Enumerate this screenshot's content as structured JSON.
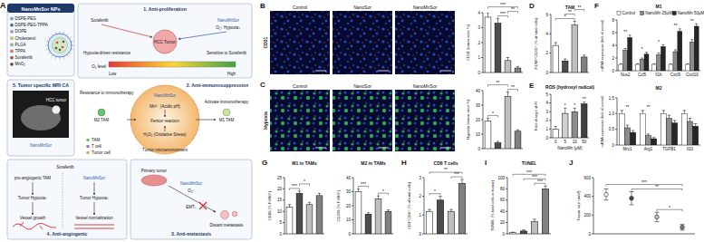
{
  "diagram": {
    "panel": "A",
    "np_title": "NanoMnSor NPs",
    "np_legend": [
      "DSPE-PEG",
      "DSPE-PEG-TPPA",
      "DOPE",
      "Cholesterol",
      "PLGA",
      "TPPA",
      "Sorafenib",
      "MnO₂"
    ],
    "sections": [
      {
        "title": "1. Anti-proliferation",
        "labels": [
          "Sorafenib",
          "NanoMnSor",
          "O₂↑ Hypoxia↓",
          "HCC Tumor",
          "Hypoxia-driven resistance",
          "Sensitive to Sorafenib",
          "O₂ level",
          "Low",
          "High"
        ]
      },
      {
        "title": "2. Anti-immunosuppression",
        "labels": [
          "Mn²⁺ (Acidic pH)",
          "H₂O₂ (Oxidative Stress)",
          "Tumor microenvironment",
          "Resistance to immunotherapy",
          "Activate immunotherapy",
          "M2 TAM",
          "M1 TAM",
          "Fenton reaction",
          "NanoMnSor",
          "TAM",
          "T cell",
          "Tumor cell"
        ]
      },
      {
        "title": "3. Anti-metastasis",
        "labels": [
          "Primary tumor",
          "NanoMnSor",
          "O₂↑",
          "EMT↓",
          "Distant metastasis"
        ]
      },
      {
        "title": "4. Anti-angiogenic",
        "labels": [
          "Sorafenib",
          "pro-angiogenic TAM",
          "Tumor Hypoxia↑",
          "Vessel growth",
          "NanoMnSor",
          "Tumor Hypoxia↓",
          "Vessel normalization"
        ]
      },
      {
        "title": "5. Tumor specific MRI CA",
        "labels": [
          "NanoMnSor",
          "HCC tumor"
        ]
      }
    ]
  },
  "image_panels": [
    {
      "panel": "B",
      "row_label": "CD31",
      "columns": [
        "Control",
        "NanoSor",
        "NanoMnSor"
      ]
    },
    {
      "panel": "C",
      "row_label": "Hypoxia",
      "columns": [
        "Control",
        "NanoSor",
        "NanoMnSor"
      ]
    }
  ],
  "chart_data": [
    {
      "type": "bar",
      "y_label": "CD31 (tumor area %)",
      "categories": [
        null,
        null,
        null,
        null
      ],
      "values": [
        3.7,
        3.3,
        0.8,
        0.3
      ],
      "errors": [
        0.3,
        0.3,
        0.2,
        0.1
      ],
      "colors": [
        "#ffffff",
        "#4d4d4d",
        "#bfbfbf",
        "#808080"
      ],
      "ylim": [
        0,
        4
      ],
      "yticks": [
        0,
        1,
        2,
        3,
        4
      ],
      "annotations": [
        {
          "text": "***",
          "between": [
            1,
            2
          ]
        },
        {
          "text": "**",
          "between": [
            2,
            3
          ]
        },
        {
          "text": "***",
          "between": [
            0,
            3
          ]
        }
      ]
    },
    {
      "type": "bar",
      "y_label": "Hypoxia (tumor area %)",
      "categories": [
        null,
        null,
        null,
        null
      ],
      "values": [
        19,
        4,
        36,
        12
      ],
      "errors": [
        2,
        1,
        3,
        1
      ],
      "colors": [
        "#ffffff",
        "#4d4d4d",
        "#bfbfbf",
        "#808080"
      ],
      "ylim": [
        0,
        40
      ],
      "yticks": [
        0,
        10,
        20,
        30,
        40
      ],
      "annotations": [
        {
          "text": "*",
          "between": [
            0,
            1
          ]
        },
        {
          "text": "**",
          "between": [
            2,
            3
          ]
        },
        {
          "text": "**",
          "between": [
            0,
            2
          ]
        }
      ]
    },
    {
      "type": "bar",
      "panel": "D",
      "title": "TAM",
      "y_label": "F4/80⁺CD45⁺ (% of total cells)",
      "categories": [
        null,
        null,
        null,
        null
      ],
      "values": [
        2.8,
        1.2,
        4.9,
        1.6
      ],
      "errors": [
        0.3,
        0.2,
        0.4,
        0.2
      ],
      "colors": [
        "#ffffff",
        "#4d4d4d",
        "#bfbfbf",
        "#808080"
      ],
      "ylim": [
        0,
        6
      ],
      "yticks": [
        0,
        2,
        4,
        6
      ],
      "annotations": [
        {
          "text": "*",
          "between": [
            0,
            2
          ]
        },
        {
          "text": "**",
          "between": [
            1,
            2
          ]
        },
        {
          "text": "**",
          "between": [
            2,
            3
          ]
        }
      ]
    },
    {
      "type": "bar",
      "panel": "E",
      "title": "ROS (hydroxyl radical)",
      "y_label": "Fold change of FI",
      "x_label": "NanoMn (μM)",
      "categories": [
        "0",
        "5",
        "10",
        "50"
      ],
      "values": [
        1.0,
        2.8,
        3.0,
        3.9
      ],
      "errors": [
        0.3,
        0.6,
        0.4,
        0.2
      ],
      "colors": [
        "#ffffff",
        "#d0d0d0",
        "#8c8c8c",
        "#404040"
      ],
      "ylim": [
        0,
        5
      ],
      "yticks": [
        0,
        1,
        2,
        3,
        4,
        5
      ],
      "annotations": [
        {
          "text": "*",
          "between": [
            1,
            1
          ]
        },
        {
          "text": "*",
          "between": [
            2,
            2
          ]
        },
        {
          "text": "**",
          "between": [
            3,
            3
          ]
        }
      ]
    },
    {
      "type": "bar",
      "panel": "F",
      "title": "M1",
      "y_label": "mRNA expression (fold of control)",
      "categories": [
        "Nos2",
        "Ccl5",
        "Il1b",
        "Cxcl9",
        "Cxcl10"
      ],
      "series": [
        {
          "name": "Control",
          "color": "#ffffff",
          "values": [
            1,
            1,
            1,
            1,
            1
          ],
          "errors": [
            0.1,
            0.1,
            0.1,
            0.1,
            0.1
          ]
        },
        {
          "name": "NanoMn 25μM",
          "color": "#8c8c8c",
          "values": [
            3.2,
            1.8,
            2.5,
            3.0,
            4.5
          ],
          "errors": [
            0.3,
            0.2,
            0.3,
            0.3,
            0.4
          ]
        },
        {
          "name": "NanoMn 50μM",
          "color": "#262626",
          "values": [
            5.2,
            2.6,
            3.8,
            6.2,
            7.0
          ],
          "errors": [
            0.4,
            0.3,
            0.3,
            0.4,
            0.4
          ]
        }
      ],
      "ylim": [
        0,
        8
      ],
      "yticks": [
        0,
        2,
        4,
        6,
        8
      ],
      "legend": "top",
      "annotations": [
        {
          "text": "**",
          "between": [
            0,
            0
          ]
        },
        {
          "text": "*",
          "between": [
            1,
            1
          ]
        },
        {
          "text": "*",
          "between": [
            2,
            2
          ]
        },
        {
          "text": "**",
          "between": [
            3,
            3
          ]
        },
        {
          "text": "**",
          "between": [
            4,
            4
          ]
        }
      ]
    },
    {
      "type": "bar",
      "title": "M2",
      "y_label": "mRNA expression (fold of control)",
      "categories": [
        "Mrc1",
        "Arg1",
        "TGFB1",
        "Il10"
      ],
      "series": [
        {
          "color": "#ffffff",
          "values": [
            1,
            1,
            1,
            1
          ],
          "errors": [
            0.1,
            0.1,
            0.1,
            0.1
          ]
        },
        {
          "color": "#8c8c8c",
          "values": [
            0.55,
            0.3,
            0.85,
            0.75
          ],
          "errors": [
            0.08,
            0.05,
            0.1,
            0.1
          ]
        },
        {
          "color": "#262626",
          "values": [
            0.4,
            0.2,
            0.7,
            0.6
          ],
          "errors": [
            0.06,
            0.04,
            0.08,
            0.08
          ]
        }
      ],
      "ylim": [
        0,
        1.5
      ],
      "yticks": [
        0,
        0.5,
        {
          "value": 1,
          "label": "1.0"
        },
        1.5
      ],
      "annotations": [
        {
          "text": "**",
          "between": [
            0,
            0
          ]
        },
        {
          "text": "**",
          "between": [
            1,
            1
          ]
        }
      ]
    },
    {
      "type": "bar",
      "panel": "G",
      "title": "M1 in TAMs",
      "y_label": "CD86 (% F4/80⁺)",
      "categories": [
        null,
        null,
        null,
        null
      ],
      "values": [
        12,
        18,
        13,
        17
      ],
      "errors": [
        1,
        1,
        1,
        1
      ],
      "colors": [
        "#ffffff",
        "#4d4d4d",
        "#bfbfbf",
        "#808080"
      ],
      "ylim": [
        0,
        25
      ],
      "yticks": [
        0,
        5,
        10,
        15,
        20,
        25
      ],
      "annotations": [
        {
          "text": "***",
          "between": [
            0,
            1
          ]
        },
        {
          "text": "*",
          "between": [
            1,
            2
          ]
        }
      ]
    },
    {
      "type": "bar",
      "title": "M2 in TAMs",
      "y_label": "CD206 (% F4/80⁺)",
      "categories": [
        null,
        null,
        null,
        null
      ],
      "values": [
        30,
        14,
        25,
        16
      ],
      "errors": [
        2,
        1,
        2,
        1
      ],
      "colors": [
        "#ffffff",
        "#4d4d4d",
        "#bfbfbf",
        "#808080"
      ],
      "ylim": [
        0,
        40
      ],
      "yticks": [
        0,
        10,
        20,
        30,
        40
      ],
      "annotations": [
        {
          "text": "***",
          "between": [
            0,
            1
          ]
        },
        {
          "text": "*",
          "between": [
            2,
            3
          ]
        }
      ]
    },
    {
      "type": "bar",
      "panel": "H",
      "title": "CD8 T cells",
      "y_label": "CD3⁺CD8⁺ (% of total cells)",
      "categories": [
        null,
        null,
        null,
        null
      ],
      "values": [
        1.2,
        1.8,
        1.2,
        2.7
      ],
      "errors": [
        0.1,
        0.2,
        0.1,
        0.2
      ],
      "colors": [
        "#ffffff",
        "#4d4d4d",
        "#bfbfbf",
        "#808080"
      ],
      "ylim": [
        0,
        3
      ],
      "yticks": [
        0,
        1,
        2,
        3
      ],
      "annotations": [
        {
          "text": "*",
          "between": [
            0,
            1
          ]
        },
        {
          "text": "***",
          "between": [
            2,
            3
          ]
        },
        {
          "text": "**",
          "between": [
            0,
            3
          ]
        }
      ]
    },
    {
      "type": "bar",
      "panel": "I",
      "title": "TUNEL",
      "y_label": "TUNEL (% total cells in tumor)",
      "categories": [
        null,
        null,
        null,
        null
      ],
      "values": [
        2,
        5,
        22,
        80
      ],
      "errors": [
        1,
        2,
        4,
        5
      ],
      "colors": [
        "#ffffff",
        "#4d4d4d",
        "#bfbfbf",
        "#808080"
      ],
      "ylim": [
        0,
        100
      ],
      "yticks": [
        0,
        20,
        40,
        60,
        80,
        100
      ],
      "annotations": [
        {
          "text": "***",
          "between": [
            2,
            3
          ]
        },
        {
          "text": "***",
          "between": [
            1,
            3
          ]
        },
        {
          "text": "***",
          "between": [
            0,
            3
          ]
        }
      ]
    },
    {
      "type": "scatter",
      "panel": "J",
      "y_label": "Tumor size (mm³)",
      "categories": [
        null,
        null,
        null,
        null
      ],
      "values": [
        420,
        380,
        180,
        70
      ],
      "errors": [
        60,
        70,
        50,
        30
      ],
      "colors": [
        "#ffffff",
        "#4d4d4d",
        "#bfbfbf",
        "#808080"
      ],
      "ylim": [
        0,
        600
      ],
      "yticks": [
        0,
        200,
        400,
        600
      ],
      "annotations": [
        {
          "text": "*",
          "between": [
            2,
            3
          ]
        },
        {
          "text": "**",
          "between": [
            1,
            3
          ]
        },
        {
          "text": "***",
          "between": [
            0,
            3
          ]
        }
      ]
    }
  ]
}
